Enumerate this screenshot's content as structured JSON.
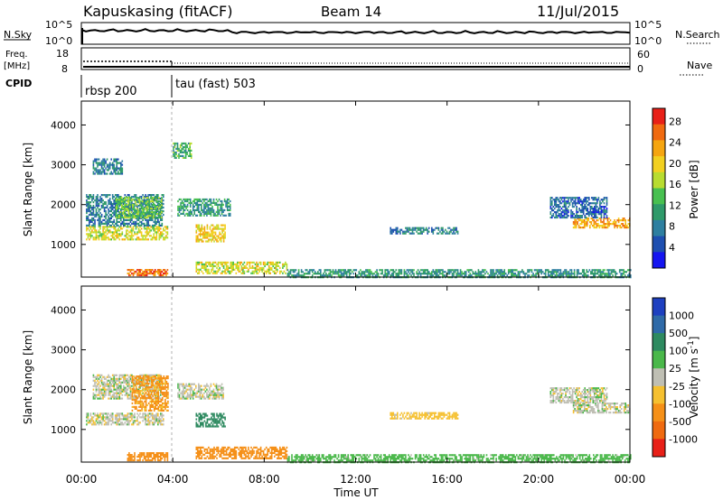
{
  "header": {
    "station": "Kapuskasing (fitACF)",
    "beam": "Beam 14",
    "date": "11/Jul/2015"
  },
  "strip": {
    "nsky_label": "N.Sky",
    "nsky_ticks": [
      "10^5",
      "10^0"
    ],
    "nsearch_label": "N.Search",
    "nsearch_ticks": [
      "10^5",
      "10^0"
    ],
    "freq_label": "Freq.",
    "freq_unit": "[MHz]",
    "freq_ticks": [
      "18",
      "8"
    ],
    "nave_label": "Nave",
    "nave_ticks": [
      "60",
      "0"
    ],
    "cpid_label": "CPID",
    "cpid_modes": [
      "rbsp 200",
      "tau (fast) 503"
    ]
  },
  "x_axis": {
    "title": "Time UT",
    "ticks": [
      "00:00",
      "04:00",
      "08:00",
      "12:00",
      "16:00",
      "20:00",
      "00:00"
    ]
  },
  "chart_data": [
    {
      "type": "heatmap",
      "name": "power",
      "ylabel": "Slant Range [km]",
      "ylim": [
        180,
        4600
      ],
      "yticks": [
        "1000",
        "2000",
        "3000",
        "4000"
      ],
      "xlim": [
        0,
        24
      ],
      "colorbar": {
        "label": "Power [dB]",
        "ticks": [
          "4",
          "8",
          "12",
          "16",
          "20",
          "24",
          "28"
        ],
        "colors": [
          "#1515f0",
          "#1e4fb0",
          "#2e7fa0",
          "#2f9a6a",
          "#48c050",
          "#b8dc30",
          "#f2d020",
          "#f5a510",
          "#f06a10",
          "#e82018"
        ]
      },
      "regions": [
        {
          "t0": 0.2,
          "t1": 3.8,
          "r0": 1150,
          "r1": 1500,
          "v": 18
        },
        {
          "t0": 0.2,
          "t1": 3.6,
          "r0": 1500,
          "r1": 2300,
          "v": 8
        },
        {
          "t0": 1.5,
          "t1": 3.5,
          "r0": 1700,
          "r1": 2200,
          "v": 14
        },
        {
          "t0": 4.2,
          "t1": 6.5,
          "r0": 1750,
          "r1": 2200,
          "v": 10
        },
        {
          "t0": 5.0,
          "t1": 6.3,
          "r0": 1100,
          "r1": 1550,
          "v": 20
        },
        {
          "t0": 2.0,
          "t1": 3.8,
          "r0": 250,
          "r1": 420,
          "v": 26
        },
        {
          "t0": 5.0,
          "t1": 9.0,
          "r0": 300,
          "r1": 600,
          "v": 18
        },
        {
          "t0": 0.5,
          "t1": 1.8,
          "r0": 2800,
          "r1": 3200,
          "v": 8
        },
        {
          "t0": 4.0,
          "t1": 4.8,
          "r0": 3200,
          "r1": 3600,
          "v": 12
        },
        {
          "t0": 13.5,
          "t1": 16.5,
          "r0": 1300,
          "r1": 1450,
          "v": 8
        },
        {
          "t0": 21.5,
          "t1": 24.0,
          "r0": 1450,
          "r1": 1700,
          "v": 22
        },
        {
          "t0": 20.5,
          "t1": 23.0,
          "r0": 1700,
          "r1": 2200,
          "v": 6
        },
        {
          "t0": 9.0,
          "t1": 24.0,
          "r0": 200,
          "r1": 420,
          "v": 10
        }
      ]
    },
    {
      "type": "heatmap",
      "name": "velocity",
      "ylabel": "Slant Range [km]",
      "ylim": [
        180,
        4600
      ],
      "yticks": [
        "1000",
        "2000",
        "3000",
        "4000"
      ],
      "xlim": [
        0,
        24
      ],
      "colorbar": {
        "label": "Velocity [m s^-1]",
        "ticks": [
          "1000",
          "500",
          "100",
          "25",
          "-25",
          "-100",
          "-500",
          "-1000"
        ],
        "colors": [
          "#1e40c0",
          "#2f6aa8",
          "#2e8a60",
          "#4ab84a",
          "#bfbfb4",
          "#f5c030",
          "#f59018",
          "#ef6a10",
          "#e82018"
        ]
      },
      "regions": [
        {
          "t0": 0.2,
          "t1": 3.6,
          "r0": 1150,
          "r1": 1450,
          "v": 0
        },
        {
          "t0": 0.5,
          "t1": 3.5,
          "r0": 1800,
          "r1": 2400,
          "v": 0
        },
        {
          "t0": 2.2,
          "t1": 3.8,
          "r0": 1500,
          "r1": 2400,
          "v": -120
        },
        {
          "t0": 4.2,
          "t1": 6.2,
          "r0": 1800,
          "r1": 2200,
          "v": 0
        },
        {
          "t0": 5.0,
          "t1": 6.3,
          "r0": 1100,
          "r1": 1450,
          "v": 200
        },
        {
          "t0": 2.0,
          "t1": 3.8,
          "r0": 250,
          "r1": 450,
          "v": -300
        },
        {
          "t0": 5.0,
          "t1": 9.0,
          "r0": 300,
          "r1": 600,
          "v": -200
        },
        {
          "t0": 9.0,
          "t1": 24.0,
          "r0": 200,
          "r1": 420,
          "v": 60
        },
        {
          "t0": 21.5,
          "t1": 24.0,
          "r0": 1450,
          "r1": 1700,
          "v": 0
        },
        {
          "t0": 20.5,
          "t1": 23.0,
          "r0": 1700,
          "r1": 2100,
          "v": 0
        },
        {
          "t0": 13.5,
          "t1": 16.5,
          "r0": 1300,
          "r1": 1450,
          "v": -60
        }
      ]
    }
  ]
}
